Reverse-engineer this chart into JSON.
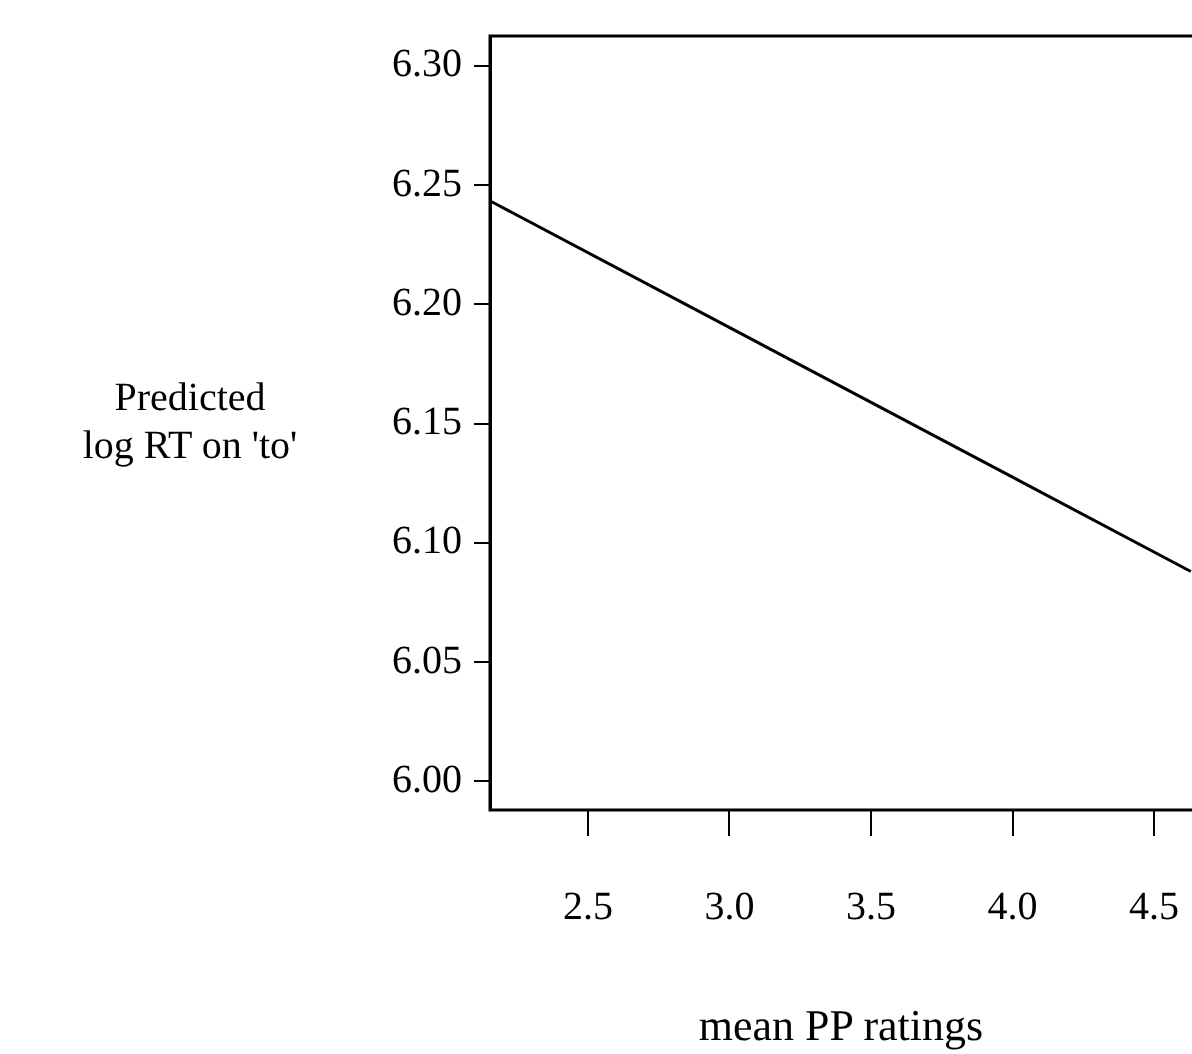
{
  "chart_data": {
    "type": "line",
    "xlabel": "mean PP ratings",
    "ylabel": "Predicted\nlog RT on 'to'",
    "series": [
      {
        "color": "#000000",
        "x": [
          2.16,
          4.63
        ],
        "values": [
          6.243,
          6.088
        ]
      }
    ],
    "xlim": [
      2.154,
      4.634
    ],
    "xticks": [
      {
        "value": 2.5,
        "label": "2.5"
      },
      {
        "value": 3,
        "label": "3.0"
      },
      {
        "value": 3.5,
        "label": "3.5"
      },
      {
        "value": 4,
        "label": "4.0"
      },
      {
        "value": 4.5,
        "label": "4.5"
      }
    ],
    "ylim": [
      5.988,
      6.3125
    ],
    "yticks": [
      {
        "value": 6,
        "label": "6.00"
      },
      {
        "value": 6.05,
        "label": "6.05"
      },
      {
        "value": 6.1,
        "label": "6.10"
      },
      {
        "value": 6.15,
        "label": "6.15"
      },
      {
        "value": 6.2,
        "label": "6.20"
      },
      {
        "value": 6.25,
        "label": "6.25"
      },
      {
        "value": 6.3,
        "label": "6.30"
      }
    ],
    "grid": false,
    "legend": false,
    "marker": "none",
    "line_style": "solid"
  }
}
